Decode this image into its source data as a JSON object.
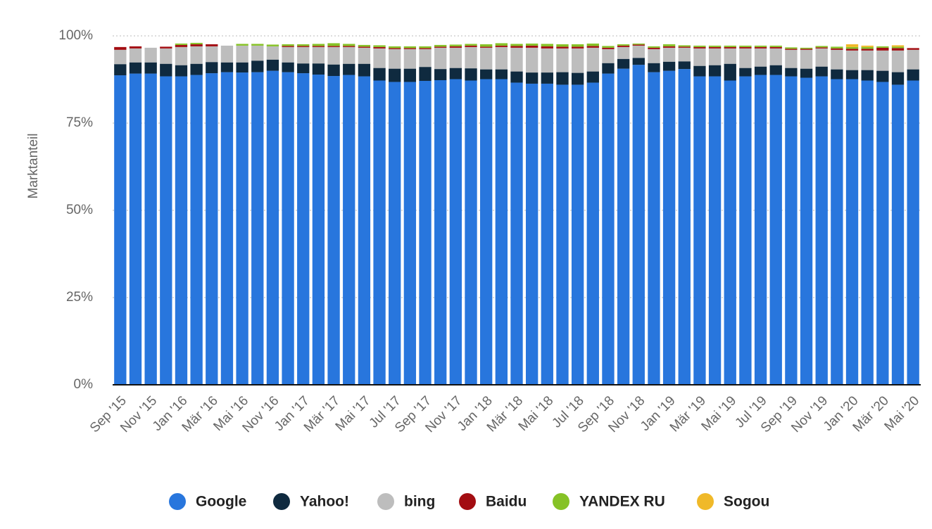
{
  "chart_data": {
    "type": "stacked-bar",
    "y_label": "Marktanteil",
    "categories": [
      "Sep '15",
      null,
      "Nov '15",
      null,
      "Jan '16",
      null,
      "Mär '16",
      null,
      "Mai '16",
      null,
      "Nov '16",
      null,
      "Jan '17",
      null,
      "Mär '17",
      null,
      "Mai '17",
      null,
      "Jul '17",
      null,
      "Sep '17",
      null,
      "Nov '17",
      null,
      "Jan '18",
      null,
      "Mär '18",
      null,
      "Mai '18",
      null,
      "Jul '18",
      null,
      "Sep '18",
      null,
      "Nov '18",
      null,
      "Jan '19",
      null,
      "Mär '19",
      null,
      "Mai '19",
      null,
      "Jul '19",
      null,
      "Sep '19",
      null,
      "Nov '19",
      null,
      "Jan '20",
      null,
      "Mär '20",
      null,
      "Mai '20"
    ],
    "series": [
      {
        "name": "Google",
        "color": "#2876dd",
        "values": [
          88.7,
          89.2,
          89.2,
          88.4,
          88.4,
          88.8,
          89.3,
          89.6,
          89.5,
          89.6,
          90.0,
          89.6,
          89.3,
          88.9,
          88.5,
          88.8,
          88.4,
          87.2,
          86.8,
          86.8,
          87.1,
          87.3,
          87.6,
          87.2,
          87.6,
          87.6,
          86.6,
          86.3,
          86.3,
          86.0,
          86.0,
          86.6,
          89.2,
          90.6,
          91.7,
          89.6,
          90.0,
          90.5,
          88.4,
          88.4,
          87.2,
          88.4,
          88.8,
          88.8,
          88.4,
          88.0,
          88.4,
          87.6,
          87.6,
          87.2,
          86.8,
          86.0,
          87.2
        ]
      },
      {
        "name": "Yahoo!",
        "color": "#0f2a3f",
        "values": [
          3.2,
          3.2,
          3.2,
          3.6,
          3.2,
          3.2,
          3.2,
          2.8,
          2.9,
          3.3,
          3.2,
          2.8,
          2.8,
          3.2,
          3.3,
          3.2,
          3.6,
          3.6,
          3.8,
          3.8,
          4.0,
          3.2,
          3.2,
          3.5,
          2.8,
          2.8,
          3.2,
          3.2,
          3.2,
          3.6,
          3.4,
          3.2,
          3.0,
          2.8,
          2.0,
          2.6,
          2.6,
          2.2,
          3.0,
          3.2,
          4.8,
          2.4,
          2.4,
          2.8,
          2.4,
          2.6,
          2.8,
          2.8,
          2.6,
          3.0,
          3.2,
          3.6,
          3.2
        ]
      },
      {
        "name": "bing",
        "color": "#bdbdbd",
        "values": [
          4.1,
          4.0,
          4.2,
          4.4,
          5.2,
          5.0,
          4.5,
          4.8,
          4.8,
          4.3,
          3.8,
          4.4,
          4.7,
          4.7,
          5.0,
          4.8,
          4.6,
          5.6,
          5.6,
          5.6,
          5.1,
          6.1,
          5.8,
          6.1,
          6.2,
          6.4,
          6.8,
          7.1,
          6.9,
          6.8,
          7.0,
          6.8,
          4.0,
          3.4,
          3.5,
          4.0,
          4.0,
          3.9,
          5.0,
          4.8,
          4.4,
          5.6,
          5.2,
          4.8,
          5.2,
          5.4,
          5.2,
          5.6,
          5.6,
          5.6,
          5.8,
          6.2,
          5.6
        ]
      },
      {
        "name": "Baidu",
        "color": "#a30d12",
        "values": [
          0.8,
          0.6,
          0,
          0.5,
          0.6,
          0.6,
          0.6,
          0,
          0,
          0,
          0,
          0.3,
          0.3,
          0.3,
          0.3,
          0.3,
          0.3,
          0.4,
          0.3,
          0.3,
          0.3,
          0.3,
          0.4,
          0.4,
          0.3,
          0.4,
          0.5,
          0.6,
          0.6,
          0.5,
          0.5,
          0.5,
          0.4,
          0.4,
          0.3,
          0.4,
          0.4,
          0.3,
          0.4,
          0.4,
          0.4,
          0.4,
          0.4,
          0.4,
          0.3,
          0.3,
          0.3,
          0.4,
          0.5,
          0.5,
          0.8,
          0.7,
          0.5
        ]
      },
      {
        "name": "YANDEX RU",
        "color": "#86c226",
        "values": [
          0,
          0,
          0,
          0,
          0.4,
          0.4,
          0,
          0,
          0.5,
          0.5,
          0.5,
          0.5,
          0.5,
          0.6,
          0.8,
          0.6,
          0.5,
          0.5,
          0.5,
          0.5,
          0.5,
          0.5,
          0.5,
          0.5,
          0.7,
          0.7,
          0.6,
          0.6,
          0.7,
          0.7,
          0.7,
          0.7,
          0.5,
          0.4,
          0.3,
          0.4,
          0.6,
          0.4,
          0.4,
          0.4,
          0.4,
          0.4,
          0.4,
          0.4,
          0.4,
          0.3,
          0.4,
          0.5,
          0.5,
          0.5,
          0.4,
          0.4,
          0
        ]
      },
      {
        "name": "Sogou",
        "color": "#f0b929",
        "values": [
          0,
          0,
          0,
          0,
          0,
          0,
          0,
          0,
          0,
          0,
          0,
          0,
          0,
          0,
          0,
          0,
          0,
          0,
          0,
          0,
          0,
          0,
          0,
          0,
          0,
          0,
          0,
          0,
          0,
          0,
          0,
          0,
          0,
          0,
          0,
          0,
          0,
          0,
          0,
          0,
          0,
          0,
          0,
          0,
          0,
          0,
          0,
          0,
          0.8,
          0.4,
          0,
          0.4,
          0
        ]
      }
    ],
    "ylim": [
      0,
      100
    ],
    "yticks": [
      {
        "value": 0,
        "label": "0%"
      },
      {
        "value": 25,
        "label": "25%"
      },
      {
        "value": 50,
        "label": "50%"
      },
      {
        "value": 75,
        "label": "75%"
      },
      {
        "value": 100,
        "label": "100%"
      }
    ],
    "grid": true,
    "legend": "bottom"
  }
}
